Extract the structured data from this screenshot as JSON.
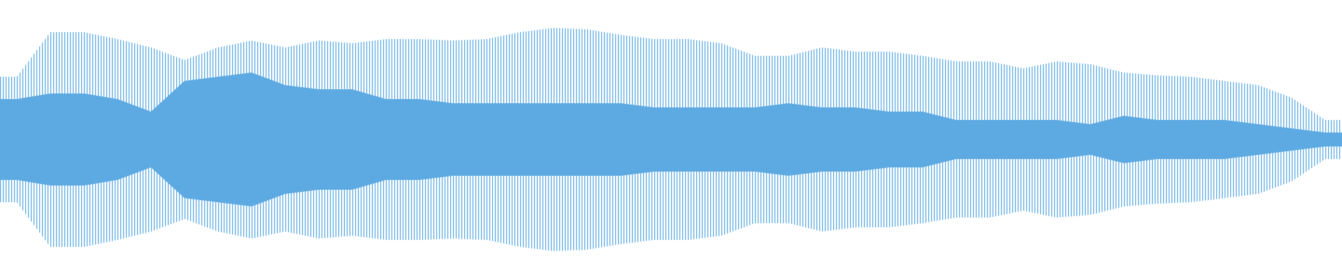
{
  "chart_data": {
    "type": "waveform",
    "color": "#5daae2",
    "ylim": [
      -1,
      1
    ],
    "values": [
      0.45,
      0.77,
      0.77,
      0.72,
      0.66,
      0.57,
      0.66,
      0.71,
      0.66,
      0.71,
      0.69,
      0.72,
      0.72,
      0.71,
      0.72,
      0.77,
      0.8,
      0.79,
      0.75,
      0.72,
      0.72,
      0.69,
      0.6,
      0.6,
      0.66,
      0.63,
      0.63,
      0.6,
      0.56,
      0.56,
      0.51,
      0.56,
      0.54,
      0.48,
      0.46,
      0.45,
      0.42,
      0.39,
      0.3,
      0.14
    ],
    "core_values": [
      0.29,
      0.33,
      0.33,
      0.29,
      0.2,
      0.42,
      0.45,
      0.48,
      0.39,
      0.36,
      0.36,
      0.29,
      0.29,
      0.26,
      0.26,
      0.26,
      0.26,
      0.26,
      0.26,
      0.23,
      0.23,
      0.23,
      0.23,
      0.26,
      0.23,
      0.23,
      0.2,
      0.2,
      0.14,
      0.14,
      0.14,
      0.14,
      0.11,
      0.17,
      0.14,
      0.14,
      0.14,
      0.11,
      0.08,
      0.05
    ]
  }
}
